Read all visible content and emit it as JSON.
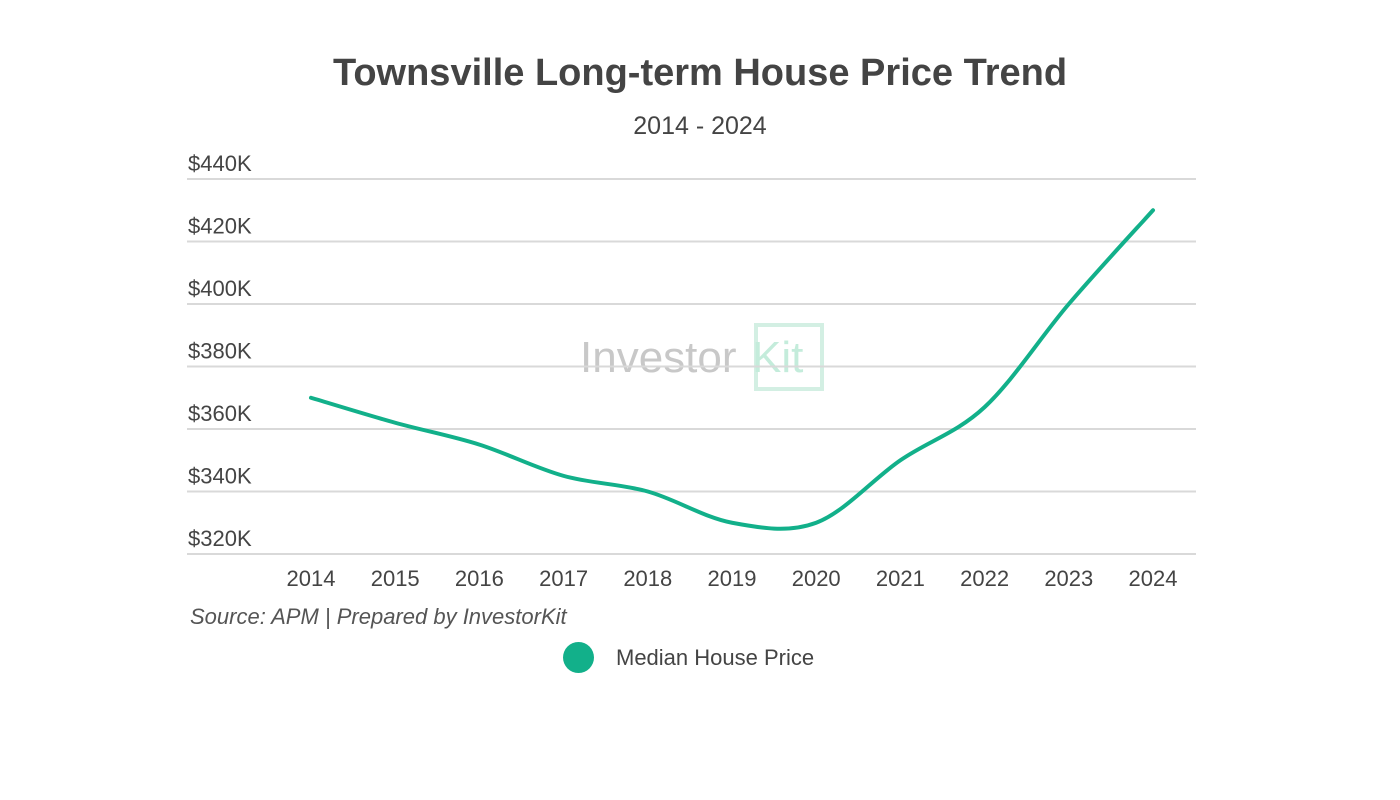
{
  "chart_data": {
    "type": "line",
    "title": "Townsville Long-term House Price Trend",
    "subtitle": "2014 - 2024",
    "source": "Source: APM | Prepared by InvestorKit",
    "x": [
      "2014",
      "2015",
      "2016",
      "2017",
      "2018",
      "2019",
      "2020",
      "2021",
      "2022",
      "2023",
      "2024"
    ],
    "series": [
      {
        "name": "Median House Price",
        "color": "#12b08a",
        "values": [
          370000,
          362000,
          355000,
          345000,
          340000,
          330000,
          330000,
          350000,
          367000,
          400000,
          430000
        ]
      }
    ],
    "ylim": [
      320000,
      440000
    ],
    "yticks": [
      320000,
      340000,
      360000,
      380000,
      400000,
      420000,
      440000
    ],
    "ytick_labels": [
      "$320K",
      "$340K",
      "$360K",
      "$380K",
      "$400K",
      "$420K",
      "$440K"
    ],
    "grid": true,
    "legend": "bottom-center",
    "watermark": "InvestorKit"
  }
}
